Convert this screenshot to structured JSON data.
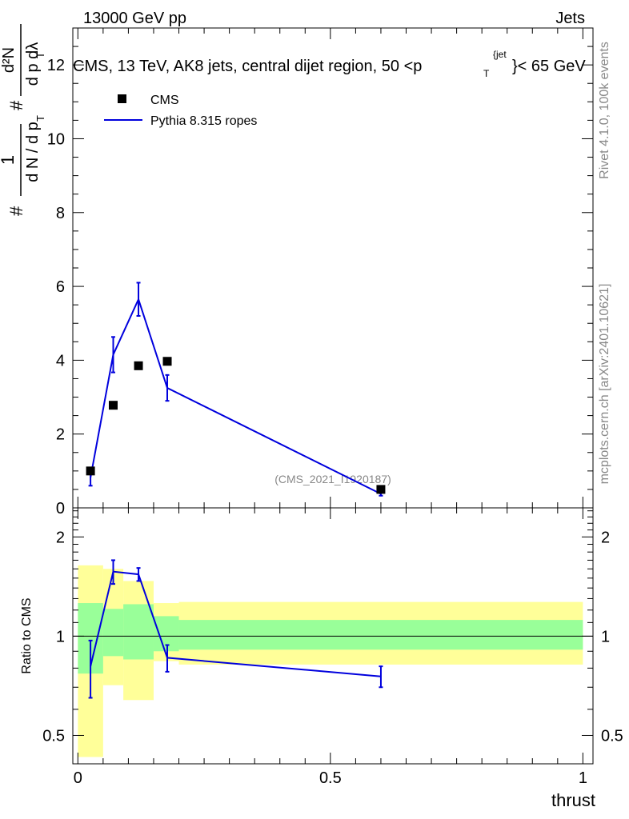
{
  "header": {
    "energy_label": "13000 GeV pp",
    "process_label": "Jets",
    "side_label_rivet": "Rivet 4.1.0,  100k events",
    "side_label_mcplots": "mcplots.cern.ch [arXiv:2401.10621]",
    "watermark": "(CMS_2021_I1920187)"
  },
  "chart_data": [
    {
      "type": "scatter",
      "title": "CMS, 13 TeV, AK8 jets, central dijet region, 50 < p_T^{jet} < 65 GeV",
      "title_main": "CMS, 13 TeV, AK8 jets, central dijet region, 50 <",
      "title_p": "p",
      "title_sub": "T",
      "title_sup": "{jet",
      "title_tail": "}< 65 GeV",
      "xlabel": "thrust",
      "ylabel": "# 1/(dN / dp_T) # d²N / (dp_T dλ)",
      "ylim": [
        0,
        13
      ],
      "xlim": [
        -0.01,
        1.02
      ],
      "yticks": [
        0,
        2,
        4,
        6,
        8,
        10,
        12
      ],
      "legend": {
        "position": "top-left",
        "entries": [
          {
            "label": "CMS",
            "marker": "square",
            "color": "#000000"
          },
          {
            "label": "Pythia 8.315 ropes",
            "marker": "line",
            "color": "#0000dd"
          }
        ]
      },
      "series": [
        {
          "name": "CMS",
          "x": [
            0.025,
            0.07,
            0.12,
            0.177,
            0.6
          ],
          "y": [
            1.0,
            2.78,
            3.85,
            3.97,
            0.5
          ]
        },
        {
          "name": "Pythia 8.315 ropes",
          "x": [
            0.025,
            0.07,
            0.12,
            0.177,
            0.6
          ],
          "y": [
            0.82,
            4.15,
            5.65,
            3.25,
            0.38
          ],
          "yerr": [
            0.22,
            0.48,
            0.45,
            0.35,
            0.05
          ]
        }
      ]
    },
    {
      "type": "line",
      "xlabel": "thrust",
      "ylabel": "Ratio to CMS",
      "yscale": "log",
      "ylim": [
        0.41,
        2.45
      ],
      "yticks": [
        0.5,
        1,
        2
      ],
      "ytick_labels": [
        "0.5",
        "1",
        "2"
      ],
      "xticks": [
        0,
        0.5,
        1
      ],
      "xtick_labels": [
        "0",
        "0.5",
        "1"
      ],
      "reference_line": 1,
      "bands": {
        "edges": [
          0,
          0.05,
          0.09,
          0.15,
          0.2,
          1.0
        ],
        "inner": {
          "color": "#99ff99",
          "low": [
            0.77,
            0.87,
            0.85,
            0.9,
            0.91
          ],
          "high": [
            1.26,
            1.21,
            1.25,
            1.15,
            1.12
          ]
        },
        "outer": {
          "color": "#ffff99",
          "low": [
            0.43,
            0.71,
            0.64,
            0.84,
            0.82
          ],
          "high": [
            1.64,
            1.6,
            1.47,
            1.26,
            1.27
          ]
        }
      },
      "series": [
        {
          "name": "Pythia 8.315 ropes",
          "x": [
            0.025,
            0.07,
            0.12,
            0.177,
            0.6
          ],
          "y": [
            0.81,
            1.57,
            1.54,
            0.86,
            0.755
          ],
          "yerr": [
            0.16,
            0.13,
            0.07,
            0.08,
            0.055
          ]
        }
      ]
    }
  ]
}
